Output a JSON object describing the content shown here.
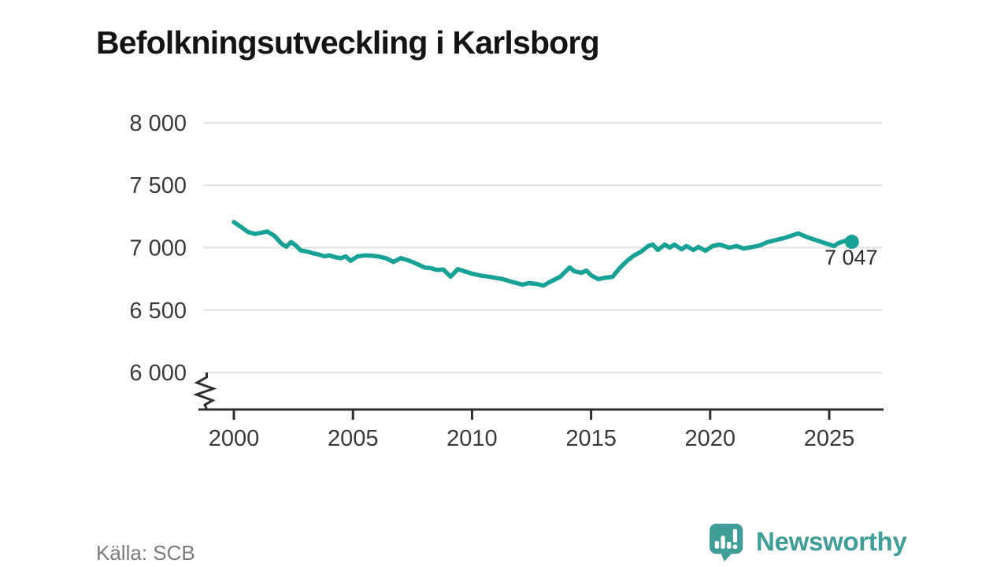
{
  "title": "Befolkningsutveckling i Karlsborg",
  "source": "Källa: SCB",
  "branding": {
    "name": "Newsworthy",
    "icon": "newsworthy-speech-bubble-bar-chart-icon"
  },
  "colors": {
    "line": "#17a295",
    "axis": "#2e2e2e",
    "grid": "#e2e2e2",
    "tick_text": "#3a3a3a",
    "title_text": "#141414",
    "source_text": "#7b7b7b",
    "brand": "#3f9e97",
    "annotation_text": "#2b2b2b"
  },
  "chart_data": {
    "type": "line",
    "title": "Befolkningsutveckling i Karlsborg",
    "xlabel": "",
    "ylabel": "",
    "grid": "horizontal",
    "legend_position": "none",
    "y_axis_break": true,
    "xlim": [
      1998.5,
      2027.3
    ],
    "ylim": [
      5850,
      8150
    ],
    "x_ticks": [
      {
        "v": 2000,
        "label": "2000"
      },
      {
        "v": 2005,
        "label": "2005"
      },
      {
        "v": 2010,
        "label": "2010"
      },
      {
        "v": 2015,
        "label": "2015"
      },
      {
        "v": 2020,
        "label": "2020"
      },
      {
        "v": 2025,
        "label": "2025"
      }
    ],
    "y_ticks": [
      {
        "v": 8000,
        "label": "8 000"
      },
      {
        "v": 7500,
        "label": "7 500"
      },
      {
        "v": 7000,
        "label": "7 000"
      },
      {
        "v": 6500,
        "label": "6 500"
      },
      {
        "v": 6000,
        "label": "6 000"
      }
    ],
    "end_label": "7 047",
    "end_value": 7047,
    "series": [
      {
        "name": "Befolkning",
        "x": [
          2000.0,
          2000.3,
          2000.6,
          2000.9,
          2001.2,
          2001.4,
          2001.7,
          2002.0,
          2002.2,
          2002.4,
          2002.6,
          2002.8,
          2003.1,
          2003.3,
          2003.6,
          2003.8,
          2004.0,
          2004.3,
          2004.5,
          2004.7,
          2004.9,
          2005.2,
          2005.5,
          2005.8,
          2006.1,
          2006.4,
          2006.7,
          2007.0,
          2007.3,
          2007.5,
          2007.8,
          2008.0,
          2008.3,
          2008.5,
          2008.8,
          2009.1,
          2009.4,
          2009.7,
          2010.0,
          2010.4,
          2010.7,
          2011.0,
          2011.3,
          2011.6,
          2011.9,
          2012.1,
          2012.4,
          2012.7,
          2013.0,
          2013.3,
          2013.7,
          2014.1,
          2014.3,
          2014.6,
          2014.8,
          2015.0,
          2015.3,
          2015.6,
          2015.9,
          2016.2,
          2016.5,
          2016.8,
          2017.1,
          2017.4,
          2017.6,
          2017.8,
          2018.1,
          2018.3,
          2018.5,
          2018.8,
          2019.0,
          2019.3,
          2019.5,
          2019.8,
          2020.1,
          2020.4,
          2020.8,
          2021.1,
          2021.4,
          2021.8,
          2022.1,
          2022.4,
          2022.8,
          2023.1,
          2023.4,
          2023.7,
          2024.1,
          2024.4,
          2024.7,
          2025.0,
          2025.2,
          2025.4,
          2025.7,
          2025.95
        ],
        "y": [
          7205,
          7165,
          7125,
          7110,
          7122,
          7130,
          7095,
          7032,
          7008,
          7045,
          7018,
          6978,
          6968,
          6956,
          6944,
          6930,
          6938,
          6922,
          6916,
          6930,
          6895,
          6930,
          6938,
          6936,
          6928,
          6915,
          6885,
          6916,
          6900,
          6885,
          6860,
          6842,
          6835,
          6822,
          6825,
          6768,
          6828,
          6810,
          6792,
          6775,
          6768,
          6758,
          6748,
          6730,
          6715,
          6704,
          6716,
          6710,
          6697,
          6729,
          6767,
          6842,
          6811,
          6798,
          6817,
          6779,
          6748,
          6760,
          6767,
          6836,
          6893,
          6937,
          6968,
          7013,
          7025,
          6981,
          7025,
          7000,
          7025,
          6987,
          7013,
          6981,
          7006,
          6975,
          7013,
          7025,
          7000,
          7013,
          6994,
          7006,
          7019,
          7044,
          7063,
          7076,
          7095,
          7114,
          7082,
          7063,
          7044,
          7025,
          7013,
          7038,
          7057,
          7047
        ]
      }
    ]
  }
}
